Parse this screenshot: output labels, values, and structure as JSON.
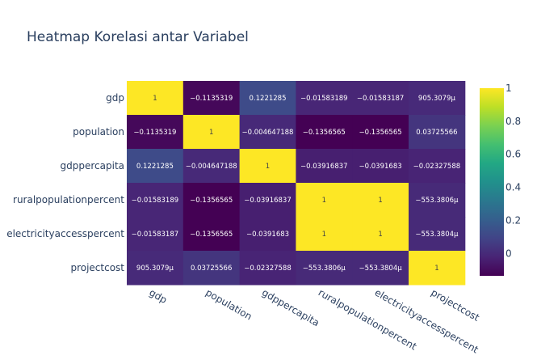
{
  "chart_data": {
    "type": "heatmap",
    "title": "Heatmap Korelasi antar Variabel",
    "xlabel": "",
    "ylabel": "",
    "x": [
      "gdp",
      "population",
      "gdppercapita",
      "ruralpopulationpercent",
      "electricityaccesspercent",
      "projectcost"
    ],
    "y": [
      "gdp",
      "population",
      "gdppercapita",
      "ruralpopulationpercent",
      "electricityaccesspercent",
      "projectcost"
    ],
    "z": [
      [
        1,
        -0.1135319,
        0.1221285,
        -0.01583189,
        -0.01583187,
        0.0009053079
      ],
      [
        -0.1135319,
        1,
        -0.004647188,
        -0.1356565,
        -0.1356565,
        0.03725566
      ],
      [
        0.1221285,
        -0.004647188,
        1,
        -0.03916837,
        -0.0391683,
        -0.02327588
      ],
      [
        -0.01583189,
        -0.1356565,
        -0.03916837,
        1,
        1,
        -0.0005533806
      ],
      [
        -0.01583187,
        -0.1356565,
        -0.0391683,
        1,
        1,
        -0.0005533804
      ],
      [
        0.0009053079,
        0.03725566,
        -0.02327588,
        -0.0005533806,
        -0.0005533804,
        1
      ]
    ],
    "text": [
      [
        "1",
        "−0.1135319",
        "0.1221285",
        "−0.01583189",
        "−0.01583187",
        "905.3079μ"
      ],
      [
        "−0.1135319",
        "1",
        "−0.004647188",
        "−0.1356565",
        "−0.1356565",
        "0.03725566"
      ],
      [
        "0.1221285",
        "−0.004647188",
        "1",
        "−0.03916837",
        "−0.0391683",
        "−0.02327588"
      ],
      [
        "−0.01583189",
        "−0.1356565",
        "−0.03916837",
        "1",
        "1",
        "−553.3806μ"
      ],
      [
        "−0.01583187",
        "−0.1356565",
        "−0.0391683",
        "1",
        "1",
        "−553.3804μ"
      ],
      [
        "905.3079μ",
        "0.03725566",
        "−0.02327588",
        "−553.3806μ",
        "−553.3804μ",
        "1"
      ]
    ],
    "zmin": -0.1356565,
    "zmax": 1,
    "colorscale": "Viridis",
    "colorbar": {
      "tickvals": [
        0,
        0.2,
        0.4,
        0.6,
        0.8,
        1
      ],
      "ticktext": [
        "0",
        "0.2",
        "0.4",
        "0.6",
        "0.8",
        "1"
      ]
    },
    "grid": false,
    "legend": "none",
    "colors": {
      "text": "#2a3f5f",
      "background": "#ffffff"
    }
  }
}
